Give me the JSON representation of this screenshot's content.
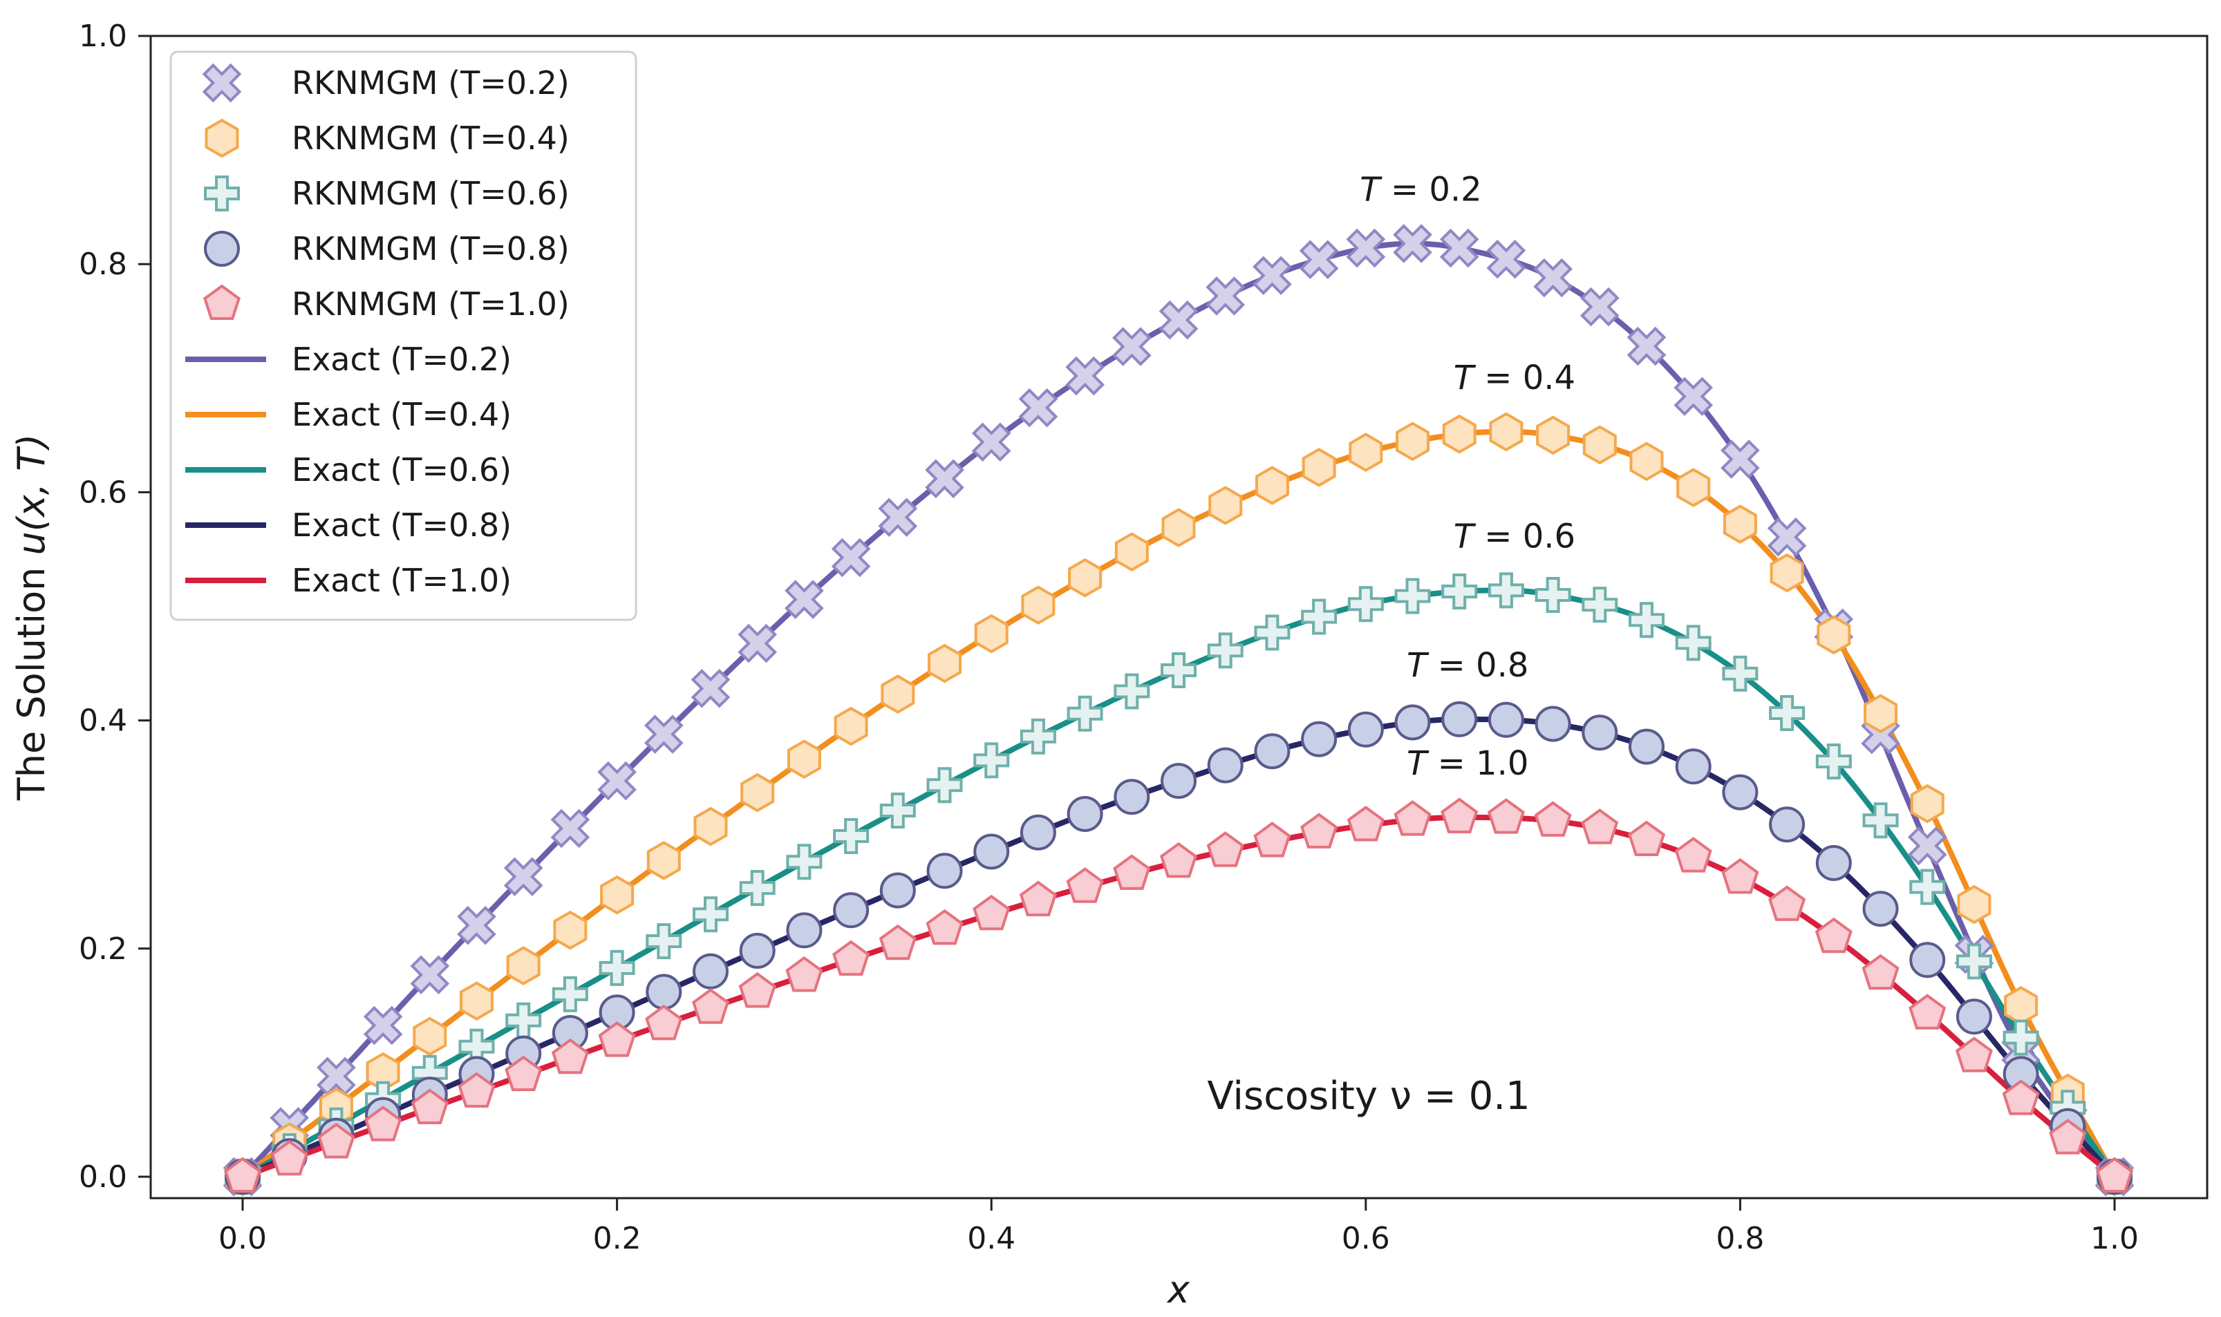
{
  "chart_data": {
    "type": "line",
    "title": "",
    "xlabel": "x",
    "ylabel": "The Solution u(x, T)",
    "ylabel_parts": {
      "text": "The Solution ",
      "math": "u(x, T)"
    },
    "xlim": [
      0.0,
      1.0
    ],
    "ylim": [
      0.0,
      1.0
    ],
    "xticks": [
      "0.0",
      "0.2",
      "0.4",
      "0.6",
      "0.8",
      "1.0"
    ],
    "yticks": [
      "0.0",
      "0.2",
      "0.4",
      "0.6",
      "0.8",
      "1.0"
    ],
    "grid": false,
    "legend_position": "upper-left",
    "annotation": "Viscosity ν = 0.1",
    "series": [
      {
        "T": "0.2",
        "curve_label": "T = 0.2",
        "exact_name": "Exact (T=0.2)",
        "marker_name": "RKNMGM (T=0.2)",
        "marker": "x",
        "line_color": "#6a5fac",
        "marker_fill": "#d4d1ea",
        "marker_edge": "#8f88c4",
        "x": [
          0.0,
          0.05,
          0.1,
          0.15,
          0.2,
          0.25,
          0.3,
          0.35,
          0.4,
          0.45,
          0.5,
          0.55,
          0.6,
          0.625,
          0.65,
          0.7,
          0.75,
          0.8,
          0.85,
          0.9,
          0.95,
          1.0
        ],
        "y": [
          0.0,
          0.088,
          0.177,
          0.263,
          0.347,
          0.428,
          0.506,
          0.578,
          0.644,
          0.702,
          0.751,
          0.79,
          0.814,
          0.818,
          0.814,
          0.788,
          0.728,
          0.629,
          0.481,
          0.29,
          0.11,
          0.0
        ]
      },
      {
        "T": "0.4",
        "curve_label": "T = 0.4",
        "exact_name": "Exact (T=0.4)",
        "marker_name": "RKNMGM (T=0.4)",
        "marker": "hexagon",
        "line_color": "#f28e1c",
        "marker_fill": "#fde3c0",
        "marker_edge": "#f5a84c",
        "x": [
          0.0,
          0.05,
          0.1,
          0.15,
          0.2,
          0.25,
          0.3,
          0.35,
          0.4,
          0.45,
          0.5,
          0.55,
          0.6,
          0.65,
          0.675,
          0.7,
          0.75,
          0.8,
          0.85,
          0.9,
          0.95,
          1.0
        ],
        "y": [
          0.0,
          0.061,
          0.123,
          0.185,
          0.247,
          0.307,
          0.366,
          0.423,
          0.476,
          0.525,
          0.569,
          0.606,
          0.635,
          0.651,
          0.653,
          0.65,
          0.627,
          0.572,
          0.475,
          0.327,
          0.15,
          0.0
        ]
      },
      {
        "T": "0.6",
        "curve_label": "T = 0.6",
        "exact_name": "Exact (T=0.6)",
        "marker_name": "RKNMGM (T=0.6)",
        "marker": "plus",
        "line_color": "#188f88",
        "marker_fill": "#e6f2f1",
        "marker_edge": "#6fb0ab",
        "x": [
          0.0,
          0.05,
          0.1,
          0.15,
          0.2,
          0.25,
          0.3,
          0.35,
          0.4,
          0.45,
          0.5,
          0.55,
          0.6,
          0.65,
          0.675,
          0.7,
          0.75,
          0.8,
          0.85,
          0.9,
          0.95,
          1.0
        ],
        "y": [
          0.0,
          0.045,
          0.091,
          0.137,
          0.183,
          0.23,
          0.276,
          0.321,
          0.365,
          0.406,
          0.444,
          0.477,
          0.502,
          0.513,
          0.514,
          0.51,
          0.488,
          0.441,
          0.364,
          0.254,
          0.122,
          0.0
        ]
      },
      {
        "T": "0.8",
        "curve_label": "T = 0.8",
        "exact_name": "Exact (T=0.8)",
        "marker_name": "RKNMGM (T=0.8)",
        "marker": "circle",
        "line_color": "#262764",
        "marker_fill": "#c8d0e8",
        "marker_edge": "#5a5a8c",
        "x": [
          0.0,
          0.05,
          0.1,
          0.15,
          0.2,
          0.25,
          0.3,
          0.35,
          0.4,
          0.45,
          0.5,
          0.55,
          0.6,
          0.65,
          0.7,
          0.75,
          0.8,
          0.85,
          0.9,
          0.95,
          1.0
        ],
        "y": [
          0.0,
          0.036,
          0.072,
          0.108,
          0.144,
          0.18,
          0.216,
          0.251,
          0.285,
          0.318,
          0.347,
          0.373,
          0.392,
          0.401,
          0.397,
          0.377,
          0.337,
          0.275,
          0.19,
          0.09,
          0.0
        ]
      },
      {
        "T": "1.0",
        "curve_label": "T = 1.0",
        "exact_name": "Exact (T=1.0)",
        "marker_name": "RKNMGM (T=1.0)",
        "marker": "pentagon",
        "line_color": "#d81f3d",
        "marker_fill": "#f8cdd3",
        "marker_edge": "#e5737f",
        "x": [
          0.0,
          0.05,
          0.1,
          0.15,
          0.2,
          0.25,
          0.3,
          0.35,
          0.4,
          0.45,
          0.5,
          0.55,
          0.6,
          0.65,
          0.7,
          0.75,
          0.8,
          0.85,
          0.9,
          0.95,
          1.0
        ],
        "y": [
          0.0,
          0.03,
          0.06,
          0.089,
          0.119,
          0.148,
          0.176,
          0.204,
          0.23,
          0.254,
          0.276,
          0.294,
          0.308,
          0.315,
          0.312,
          0.295,
          0.262,
          0.21,
          0.143,
          0.068,
          0.0
        ]
      }
    ]
  }
}
